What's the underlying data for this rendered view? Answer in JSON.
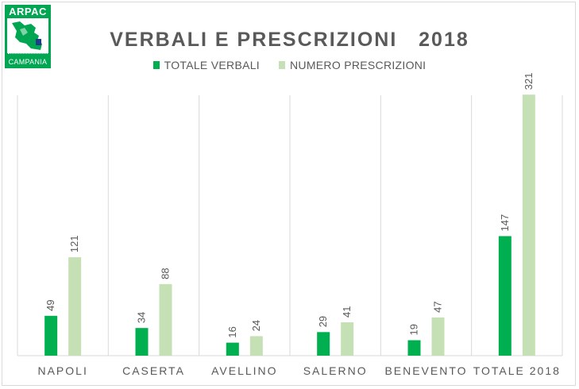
{
  "logo": {
    "name": "ARPAC",
    "region": "CAMPANIA"
  },
  "chart_data": {
    "type": "bar",
    "title": "VERBALI E PRESCRIZIONI   2018",
    "categories": [
      "NAPOLI",
      "CASERTA",
      "AVELLINO",
      "SALERNO",
      "BENEVENTO",
      "TOTALE 2018"
    ],
    "series": [
      {
        "name": "TOTALE VERBALI",
        "values": [
          49,
          34,
          16,
          29,
          19,
          147
        ],
        "color": "#00b050"
      },
      {
        "name": "NUMERO PRESCRIZIONI",
        "values": [
          121,
          88,
          24,
          41,
          47,
          321
        ],
        "color": "#c5e0b4"
      }
    ],
    "xlabel": "",
    "ylabel": "",
    "ylim": [
      0,
      330
    ],
    "grid": false,
    "legend_position": "top",
    "data_labels": true
  }
}
